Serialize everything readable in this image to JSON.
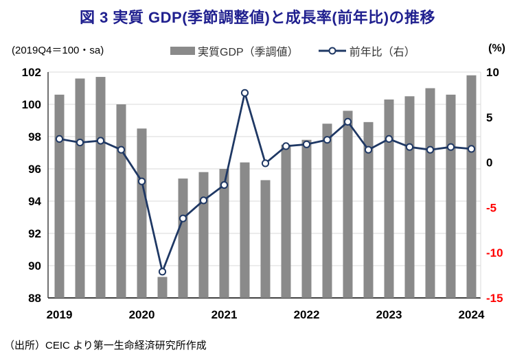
{
  "title": "図 3  実質 GDP(季節調整値)と成長率(前年比)の推移",
  "axis_note_left": "(2019Q4＝100・sa)",
  "axis_note_right": "(%)",
  "legend": {
    "bar_label": "実質GDP（季調値）",
    "line_label": "前年比（右）"
  },
  "source": "（出所）CEIC より第一生命経済研究所作成",
  "colors": {
    "title": "#20208F",
    "bar": "#8A8A8A",
    "line": "#1F3864",
    "marker_fill": "#FFFFFF",
    "negative_tick": "#FF0000",
    "positive_tick": "#000000",
    "gridline": "#D9D9D9",
    "axis_line": "#404040",
    "legend_text": "#333333"
  },
  "chart_data": {
    "type": "bar",
    "subtype": "bar+line combo, dual axis",
    "title": "実質GDP(季節調整値)と成長率(前年比)の推移",
    "x": [
      "2019Q1",
      "2019Q2",
      "2019Q3",
      "2019Q4",
      "2020Q1",
      "2020Q2",
      "2020Q3",
      "2020Q4",
      "2021Q1",
      "2021Q2",
      "2021Q3",
      "2021Q4",
      "2022Q1",
      "2022Q2",
      "2022Q3",
      "2022Q4",
      "2023Q1",
      "2023Q2",
      "2023Q3",
      "2023Q4",
      "2024Q1"
    ],
    "x_year_labels": [
      "2019",
      "2020",
      "2021",
      "2022",
      "2023",
      "2024"
    ],
    "x_year_label_indices": [
      0,
      4,
      8,
      12,
      16,
      20
    ],
    "series": [
      {
        "name": "実質GDP（季調値）",
        "type": "bar",
        "axis": "left",
        "values": [
          100.6,
          101.6,
          101.7,
          100.0,
          98.5,
          89.3,
          95.4,
          95.8,
          96.0,
          96.4,
          95.3,
          97.5,
          97.8,
          98.8,
          99.6,
          98.9,
          100.3,
          100.5,
          101.0,
          100.6,
          101.8
        ]
      },
      {
        "name": "前年比（右）",
        "type": "line",
        "axis": "right",
        "values": [
          2.6,
          2.2,
          2.4,
          1.4,
          -2.1,
          -12.1,
          -6.2,
          -4.2,
          -2.5,
          7.7,
          -0.1,
          1.8,
          2.0,
          2.5,
          4.5,
          1.4,
          2.6,
          1.7,
          1.4,
          1.7,
          1.5
        ]
      }
    ],
    "left_axis": {
      "label": "(2019Q4＝100・sa)",
      "min": 88,
      "max": 102,
      "ticks": [
        102,
        100,
        98,
        96,
        94,
        92,
        90,
        88
      ]
    },
    "right_axis": {
      "label": "(%)",
      "min": -15,
      "max": 10,
      "ticks": [
        10,
        5,
        0,
        -5,
        -10,
        -15
      ]
    },
    "grid": true,
    "legend_position": "top-center"
  }
}
